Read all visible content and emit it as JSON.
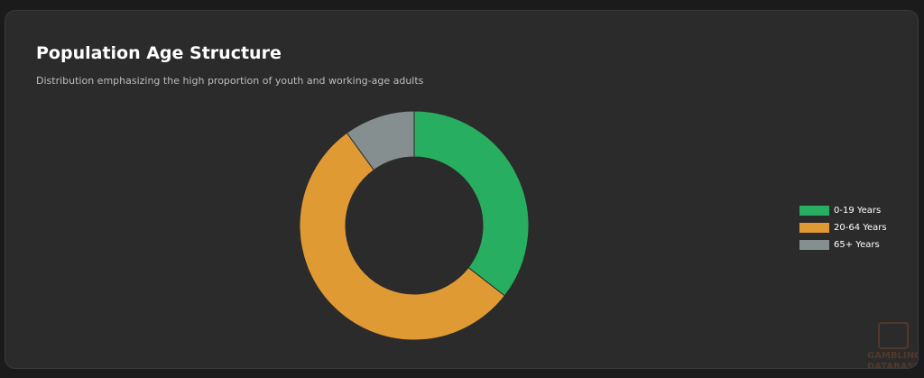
{
  "chart_data": {
    "type": "pie",
    "variant": "doughnut",
    "title": "Population Age Structure",
    "subtitle": "Distribution emphasizing the high proportion of youth and working-age adults",
    "categories": [
      "0-19 Years",
      "20-64 Years",
      "65+ Years"
    ],
    "values": [
      35.5,
      54.5,
      10.0
    ],
    "colors": [
      "#27ae60",
      "#e09a33",
      "#858f8f"
    ],
    "legend_position": "right"
  },
  "watermark": {
    "line1": "GAMBLING",
    "line2": "DATABASES"
  }
}
